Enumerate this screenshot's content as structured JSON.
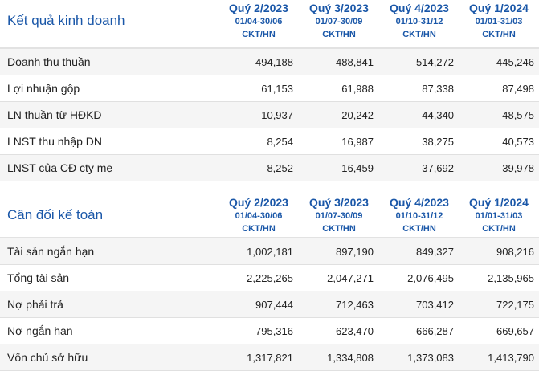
{
  "sections": [
    {
      "title": "Kết quả kinh doanh",
      "quarters": [
        {
          "label": "Quý 2/2023",
          "range": "01/04-30/06",
          "audit": "CKT/HN"
        },
        {
          "label": "Quý 3/2023",
          "range": "01/07-30/09",
          "audit": "CKT/HN"
        },
        {
          "label": "Quý 4/2023",
          "range": "01/10-31/12",
          "audit": "CKT/HN"
        },
        {
          "label": "Quý 1/2024",
          "range": "01/01-31/03",
          "audit": "CKT/HN"
        }
      ],
      "rows": [
        {
          "label": "Doanh thu thuần",
          "values": [
            "494,188",
            "488,841",
            "514,272",
            "445,246"
          ]
        },
        {
          "label": "Lợi nhuận gộp",
          "values": [
            "61,153",
            "61,988",
            "87,338",
            "87,498"
          ]
        },
        {
          "label": "LN thuần từ HĐKD",
          "values": [
            "10,937",
            "20,242",
            "44,340",
            "48,575"
          ]
        },
        {
          "label": "LNST thu nhập DN",
          "values": [
            "8,254",
            "16,987",
            "38,275",
            "40,573"
          ]
        },
        {
          "label": "LNST của CĐ cty mẹ",
          "values": [
            "8,252",
            "16,459",
            "37,692",
            "39,978"
          ]
        }
      ]
    },
    {
      "title": "Cân đối kế toán",
      "quarters": [
        {
          "label": "Quý 2/2023",
          "range": "01/04-30/06",
          "audit": "CKT/HN"
        },
        {
          "label": "Quý 3/2023",
          "range": "01/07-30/09",
          "audit": "CKT/HN"
        },
        {
          "label": "Quý 4/2023",
          "range": "01/10-31/12",
          "audit": "CKT/HN"
        },
        {
          "label": "Quý 1/2024",
          "range": "01/01-31/03",
          "audit": "CKT/HN"
        }
      ],
      "rows": [
        {
          "label": "Tài sản ngắn hạn",
          "values": [
            "1,002,181",
            "897,190",
            "849,327",
            "908,216"
          ]
        },
        {
          "label": "Tổng tài sản",
          "values": [
            "2,225,265",
            "2,047,271",
            "2,076,495",
            "2,135,965"
          ]
        },
        {
          "label": "Nợ phải trả",
          "values": [
            "907,444",
            "712,463",
            "703,412",
            "722,175"
          ]
        },
        {
          "label": "Nợ ngắn hạn",
          "values": [
            "795,316",
            "623,470",
            "666,287",
            "669,657"
          ]
        },
        {
          "label": "Vốn chủ sở hữu",
          "values": [
            "1,317,821",
            "1,334,808",
            "1,373,083",
            "1,413,790"
          ]
        }
      ]
    }
  ],
  "colors": {
    "accent": "#1a57a8",
    "row_alt": "#f5f5f5",
    "divider": "#e0e0e0"
  }
}
